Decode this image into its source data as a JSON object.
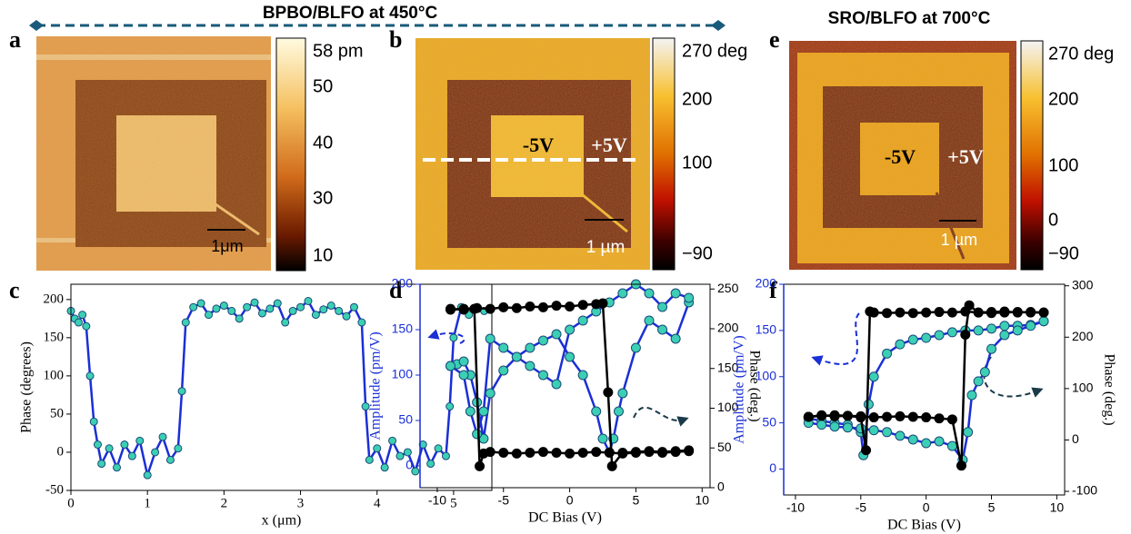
{
  "figure": {
    "titles": [
      "BPBO/BLFO at 450°C",
      "SRO/BLFO at 700°C"
    ],
    "panel_labels": [
      "a",
      "b",
      "e",
      "c",
      "d",
      "f"
    ]
  },
  "images": [
    {
      "scale_bar": "1μm",
      "colorbar_ticks": [
        "58 pm",
        "50",
        "40",
        "30",
        "10"
      ]
    },
    {
      "scale_bar": "1 µm",
      "annotations": [
        "-5V",
        "+5V"
      ],
      "colorbar_ticks": [
        "270 deg",
        "200",
        "100",
        "−90"
      ]
    },
    {
      "scale_bar": "1 µm",
      "annotations": [
        "-5V",
        "+5V"
      ],
      "colorbar_ticks": [
        "270 deg",
        "200",
        "100",
        "0",
        "−90"
      ]
    }
  ],
  "chart_data": [
    {
      "type": "line",
      "xlabel": "x (μm)",
      "ylabel": "Phase (degrees)",
      "xlim": [
        0,
        5.5
      ],
      "ylim": [
        -50,
        220
      ],
      "xticks": [
        0,
        1,
        2,
        3,
        4,
        5
      ],
      "yticks": [
        -50,
        0,
        50,
        100,
        150,
        200
      ],
      "series": [
        {
          "color": "#1a2fd6",
          "marker_color": "#3ccfb4",
          "x": [
            0,
            0.05,
            0.1,
            0.15,
            0.2,
            0.25,
            0.3,
            0.35,
            0.4,
            0.5,
            0.6,
            0.7,
            0.8,
            0.9,
            1.0,
            1.1,
            1.2,
            1.3,
            1.4,
            1.45,
            1.5,
            1.6,
            1.7,
            1.8,
            1.9,
            2.0,
            2.1,
            2.2,
            2.3,
            2.4,
            2.5,
            2.6,
            2.7,
            2.8,
            2.9,
            3.0,
            3.1,
            3.2,
            3.3,
            3.4,
            3.5,
            3.6,
            3.7,
            3.8,
            3.85,
            3.9,
            4.0,
            4.1,
            4.2,
            4.3,
            4.4,
            4.5,
            4.6,
            4.7,
            4.8,
            4.9,
            4.95,
            5.0,
            5.1,
            5.2,
            5.3,
            5.4
          ],
          "values": [
            185,
            175,
            170,
            180,
            165,
            100,
            40,
            10,
            -15,
            5,
            -20,
            10,
            -5,
            15,
            -30,
            0,
            20,
            -10,
            5,
            80,
            170,
            190,
            195,
            180,
            188,
            192,
            185,
            175,
            190,
            196,
            182,
            188,
            195,
            170,
            185,
            190,
            198,
            180,
            187,
            192,
            185,
            178,
            190,
            170,
            60,
            -10,
            5,
            -20,
            15,
            -5,
            0,
            -25,
            10,
            -15,
            5,
            -5,
            60,
            150,
            190,
            180,
            188,
            185
          ]
        }
      ]
    },
    {
      "type": "line",
      "xlabel": "DC Bias (V)",
      "ylabel": "Amplitude (pm/V)",
      "y2label": "Phase (deg.)",
      "ylabel_color": "#1a2fd6",
      "xlim": [
        -11.3,
        10.6
      ],
      "ylim": [
        -24,
        200
      ],
      "y2lim": [
        0,
        256
      ],
      "xticks": [
        -10,
        -5,
        0,
        5,
        10
      ],
      "yticks": [
        0,
        50,
        100,
        150,
        200
      ],
      "y2ticks": [
        0,
        50,
        100,
        150,
        200,
        250
      ],
      "series": [
        {
          "color": "#1a2fd6",
          "marker_color": "#3ccfb4",
          "x": [
            -9,
            -8.5,
            -8,
            -7.5,
            -7,
            -6.5,
            -6,
            -5,
            -4,
            -3,
            -2,
            -1,
            0,
            1,
            2,
            2.5,
            3,
            3.3,
            3.7,
            4,
            5,
            6,
            7,
            8,
            9,
            9,
            8,
            7,
            6,
            5,
            4,
            3,
            2,
            1,
            0,
            -1,
            -2,
            -3,
            -4,
            -5,
            -6,
            -6.5,
            -7,
            -7.5,
            -8,
            -9
          ],
          "values": [
            110,
            112,
            115,
            100,
            70,
            30,
            80,
            105,
            120,
            130,
            138,
            145,
            120,
            100,
            60,
            30,
            15,
            30,
            60,
            80,
            130,
            160,
            150,
            140,
            180,
            185,
            190,
            175,
            190,
            200,
            190,
            180,
            170,
            160,
            150,
            90,
            100,
            110,
            120,
            130,
            140,
            60,
            35,
            60,
            100,
            110
          ]
        },
        {
          "color": "#000000",
          "marker_color": "#000000",
          "axis": "y2",
          "x": [
            -9,
            -8,
            -7,
            -6,
            -5,
            -4,
            -3,
            -2,
            -1,
            0,
            1,
            2,
            2.5,
            2.9,
            3.2,
            4,
            5,
            6,
            7,
            8,
            9,
            9,
            8,
            7,
            6,
            5,
            4,
            3,
            2,
            1,
            0,
            -1,
            -2,
            -3,
            -4,
            -5,
            -6,
            -6.5,
            -6.8,
            -7.2,
            -8,
            -9
          ],
          "values": [
            224,
            225,
            226,
            225,
            227,
            226,
            228,
            227,
            229,
            228,
            230,
            231,
            232,
            120,
            27,
            44,
            45,
            46,
            45,
            46,
            47,
            46,
            45,
            44,
            45,
            44,
            43,
            44,
            45,
            44,
            43,
            44,
            45,
            44,
            43,
            44,
            45,
            43,
            27,
            225,
            224,
            225
          ]
        }
      ]
    },
    {
      "type": "line",
      "xlabel": "DC Bias (V)",
      "ylabel": "Amplitude (pm/V)",
      "y2label": "Phase (deg.)",
      "ylabel_color": "#1a2fd6",
      "xlim": [
        -10.9,
        10.6
      ],
      "ylim": [
        -28,
        200
      ],
      "y2lim": [
        -107,
        303
      ],
      "xticks": [
        -10,
        -5,
        0,
        5,
        10
      ],
      "yticks": [
        0,
        50,
        100,
        150,
        200
      ],
      "y2ticks": [
        -100,
        0,
        100,
        200,
        300
      ],
      "series": [
        {
          "color": "#1a2fd6",
          "marker_color": "#3ccfb4",
          "x": [
            -9,
            -8,
            -7,
            -6,
            -5,
            -4.8,
            -4.4,
            -4,
            -3,
            -2,
            -1,
            0,
            1,
            2,
            3,
            4,
            5,
            6,
            7,
            8,
            9,
            9,
            8,
            7,
            6,
            5,
            4.5,
            4,
            3.5,
            3.2,
            2.8,
            2,
            1,
            0,
            -1,
            -2,
            -3,
            -4,
            -5,
            -6,
            -7,
            -8,
            -9
          ],
          "values": [
            55,
            52,
            50,
            48,
            40,
            15,
            70,
            100,
            125,
            135,
            140,
            142,
            145,
            148,
            150,
            150,
            152,
            155,
            155,
            156,
            160,
            160,
            155,
            150,
            145,
            130,
            105,
            95,
            80,
            40,
            10,
            25,
            30,
            28,
            32,
            36,
            40,
            42,
            44,
            45,
            46,
            48,
            50
          ]
        },
        {
          "color": "#000000",
          "marker_color": "#000000",
          "axis": "y2",
          "x": [
            -9,
            -8,
            -7,
            -6,
            -5,
            -4.6,
            -4.3,
            -4,
            -3,
            -2,
            -1,
            0,
            1,
            2,
            3,
            4,
            5,
            6,
            7,
            8,
            9,
            9,
            8,
            7,
            6,
            5,
            4,
            3.3,
            3,
            2.7,
            2,
            1,
            0,
            -1,
            -2,
            -3,
            -4,
            -5,
            -6,
            -7,
            -8,
            -9
          ],
          "values": [
            45,
            48,
            46,
            47,
            44,
            -20,
            250,
            248,
            247,
            248,
            247,
            248,
            249,
            248,
            250,
            248,
            247,
            248,
            249,
            248,
            248,
            248,
            249,
            248,
            250,
            249,
            248,
            262,
            205,
            -50,
            40,
            42,
            44,
            45,
            46,
            45,
            44,
            46,
            47,
            48,
            47,
            45
          ]
        }
      ]
    }
  ]
}
